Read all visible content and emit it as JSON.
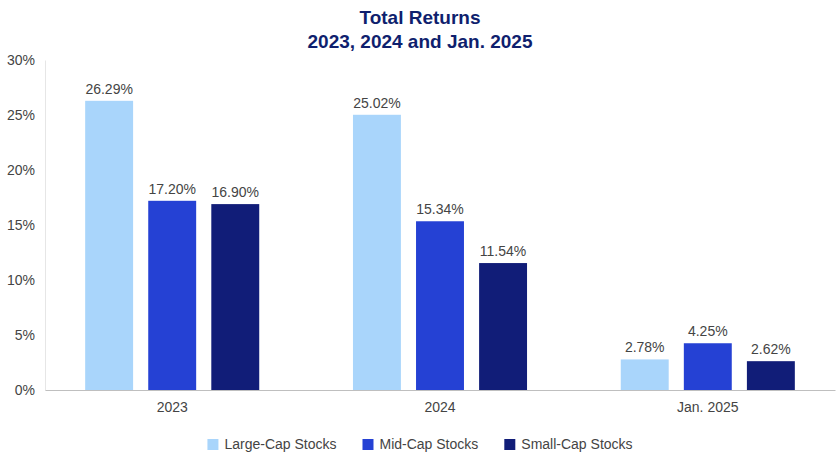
{
  "chart_data": {
    "type": "bar",
    "title": "Total Returns",
    "subtitle": "2023, 2024 and Jan. 2025",
    "categories": [
      "2023",
      "2024",
      "Jan. 2025"
    ],
    "series": [
      {
        "name": "Large-Cap Stocks",
        "color": "#a9d5fb",
        "values": [
          26.29,
          25.02,
          2.78
        ],
        "value_labels": [
          "26.29%",
          "25.02%",
          "2.78%"
        ]
      },
      {
        "name": "Mid-Cap Stocks",
        "color": "#2541d4",
        "values": [
          17.2,
          15.34,
          4.25
        ],
        "value_labels": [
          "17.20%",
          "15.34%",
          "4.25%"
        ]
      },
      {
        "name": "Small-Cap Stocks",
        "color": "#111d78",
        "values": [
          16.9,
          11.54,
          2.62
        ],
        "value_labels": [
          "16.90%",
          "11.54%",
          "2.62%"
        ]
      }
    ],
    "ylim": [
      0,
      30
    ],
    "yticks": [
      {
        "value": 0,
        "label": "0%"
      },
      {
        "value": 5,
        "label": "5%"
      },
      {
        "value": 10,
        "label": "10%"
      },
      {
        "value": 15,
        "label": "15%"
      },
      {
        "value": 20,
        "label": "20%"
      },
      {
        "value": 25,
        "label": "25%"
      },
      {
        "value": 30,
        "label": "30%"
      }
    ],
    "grid": false,
    "data_labels": true,
    "legend": "bottom"
  }
}
